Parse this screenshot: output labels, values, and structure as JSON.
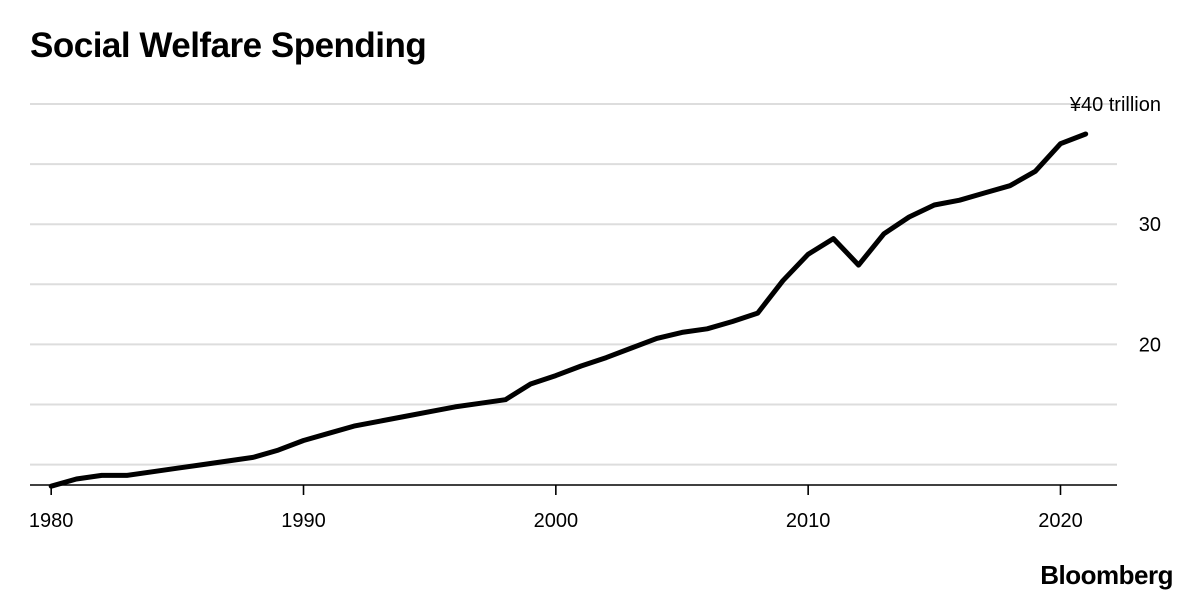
{
  "title": "Social Welfare Spending",
  "brand": "Bloomberg",
  "chart_data": {
    "type": "line",
    "title": "Social Welfare Spending",
    "xlabel": "",
    "ylabel": "",
    "xlim": [
      1979.2,
      2022.2
    ],
    "ylim": [
      8.3,
      40
    ],
    "grid": true,
    "line_color": "#000000",
    "grid_color": "#dddddd",
    "y_gridlines": [
      10,
      15,
      20,
      25,
      30,
      35,
      40
    ],
    "y_tick_labels": [
      {
        "value": 40,
        "label": "¥40 trillion"
      },
      {
        "value": 30,
        "label": "30"
      },
      {
        "value": 20,
        "label": "20"
      }
    ],
    "x_tick_labels": [
      {
        "value": 1980,
        "label": "1980"
      },
      {
        "value": 1990,
        "label": "1990"
      },
      {
        "value": 2000,
        "label": "2000"
      },
      {
        "value": 2010,
        "label": "2010"
      },
      {
        "value": 2020,
        "label": "2020"
      }
    ],
    "series": [
      {
        "x": [
          1980,
          1981,
          1982,
          1983,
          1984,
          1985,
          1986,
          1987,
          1988,
          1989,
          1990,
          1991,
          1992,
          1993,
          1994,
          1995,
          1996,
          1997,
          1998,
          1999,
          2000,
          2001,
          2002,
          2003,
          2004,
          2005,
          2006,
          2007,
          2008,
          2009,
          2010,
          2011,
          2012,
          2013,
          2014,
          2015,
          2016,
          2017,
          2018,
          2019,
          2020,
          2021
        ],
        "values": [
          8.2,
          8.8,
          9.1,
          9.1,
          9.4,
          9.7,
          10.0,
          10.3,
          10.6,
          11.2,
          12.0,
          12.6,
          13.2,
          13.6,
          14.0,
          14.4,
          14.8,
          15.1,
          15.4,
          16.7,
          17.4,
          18.2,
          18.9,
          19.7,
          20.5,
          21.0,
          21.3,
          21.9,
          22.6,
          25.3,
          27.5,
          28.8,
          26.6,
          29.2,
          30.6,
          31.6,
          32.0,
          32.6,
          33.2,
          34.4,
          36.7,
          37.5
        ]
      }
    ]
  }
}
